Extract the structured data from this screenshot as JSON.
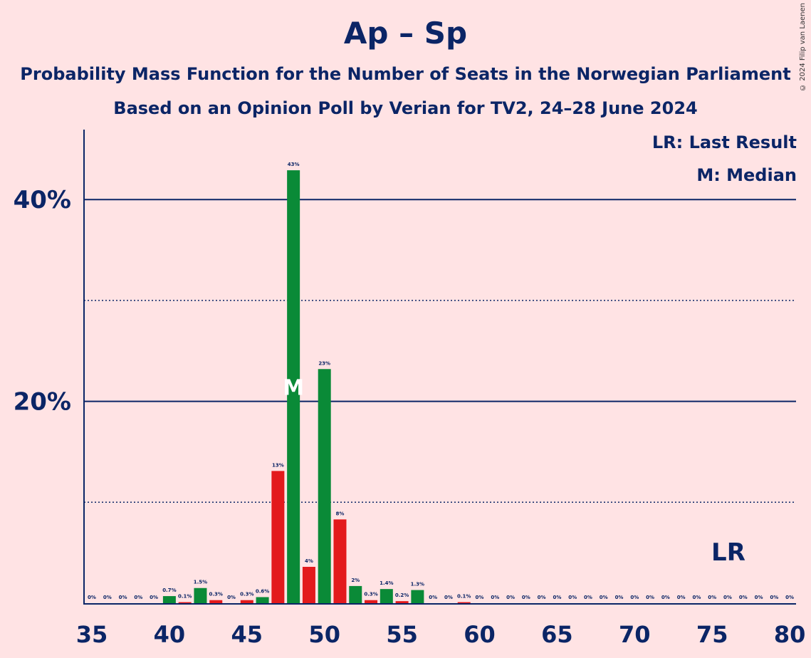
{
  "chart_data": {
    "type": "bar",
    "title": "Ap – Sp",
    "subtitle": "Probability Mass Function for the Number of Seats in the Norwegian Parliament",
    "subtitle2": "Based on an Opinion Poll by Verian for TV2, 24–28 June 2024",
    "copyright": "© 2024 Filip van Laenen",
    "legend": [
      "LR: Last Result",
      "M: Median"
    ],
    "legend_position": "top-right",
    "xlim": [
      35,
      80
    ],
    "ylim": [
      0,
      46
    ],
    "x_ticks": [
      35,
      40,
      45,
      50,
      55,
      60,
      65,
      70,
      75,
      80
    ],
    "y_ticks": [
      {
        "value": 20,
        "label": "20%"
      },
      {
        "value": 40,
        "label": "40%"
      }
    ],
    "dotted_gridlines": [
      10,
      30
    ],
    "colors": {
      "odd_bar": "#E31A1C",
      "even_bar": "#0A8A37",
      "axis": "#0B2566",
      "background": "#FFE3E4"
    },
    "median_seat": 48,
    "median_marker": "M",
    "last_result_seat": 76,
    "last_result_marker": "LR",
    "x": [
      35,
      36,
      37,
      38,
      39,
      40,
      41,
      42,
      43,
      44,
      45,
      46,
      47,
      48,
      49,
      50,
      51,
      52,
      53,
      54,
      55,
      56,
      57,
      58,
      59,
      60,
      61,
      62,
      63,
      64,
      65,
      66,
      67,
      68,
      69,
      70,
      71,
      72,
      73,
      74,
      75,
      76,
      77,
      78,
      79,
      80
    ],
    "values": [
      0,
      0,
      0,
      0,
      0,
      0.7,
      0.1,
      1.5,
      0.3,
      0,
      0.3,
      0.6,
      13,
      43,
      4,
      23,
      8,
      2,
      0.3,
      1.4,
      0.2,
      1.3,
      0,
      0,
      0.1,
      0,
      0,
      0,
      0,
      0,
      0,
      0,
      0,
      0,
      0,
      0,
      0,
      0,
      0,
      0,
      0,
      0,
      0,
      0,
      0,
      0
    ],
    "bar_heights": [
      0,
      0,
      0,
      0,
      0,
      0.7,
      0.1,
      1.5,
      0.3,
      0,
      0.3,
      0.6,
      13.1,
      42.9,
      3.6,
      23.2,
      8.3,
      1.7,
      0.3,
      1.4,
      0.2,
      1.3,
      0,
      0,
      0.1,
      0,
      0,
      0,
      0,
      0,
      0,
      0,
      0,
      0,
      0,
      0,
      0,
      0,
      0,
      0,
      0,
      0,
      0,
      0,
      0,
      0
    ],
    "labels": [
      "0%",
      "0%",
      "0%",
      "0%",
      "0%",
      "0.7%",
      "0.1%",
      "1.5%",
      "0.3%",
      "0%",
      "0.3%",
      "0.6%",
      "13%",
      "43%",
      "4%",
      "23%",
      "8%",
      "2%",
      "0.3%",
      "1.4%",
      "0.2%",
      "1.3%",
      "0%",
      "0%",
      "0.1%",
      "0%",
      "0%",
      "0%",
      "0%",
      "0%",
      "0%",
      "0%",
      "0%",
      "0%",
      "0%",
      "0%",
      "0%",
      "0%",
      "0%",
      "0%",
      "0%",
      "0%",
      "0%",
      "0%",
      "0%",
      "0%"
    ]
  }
}
